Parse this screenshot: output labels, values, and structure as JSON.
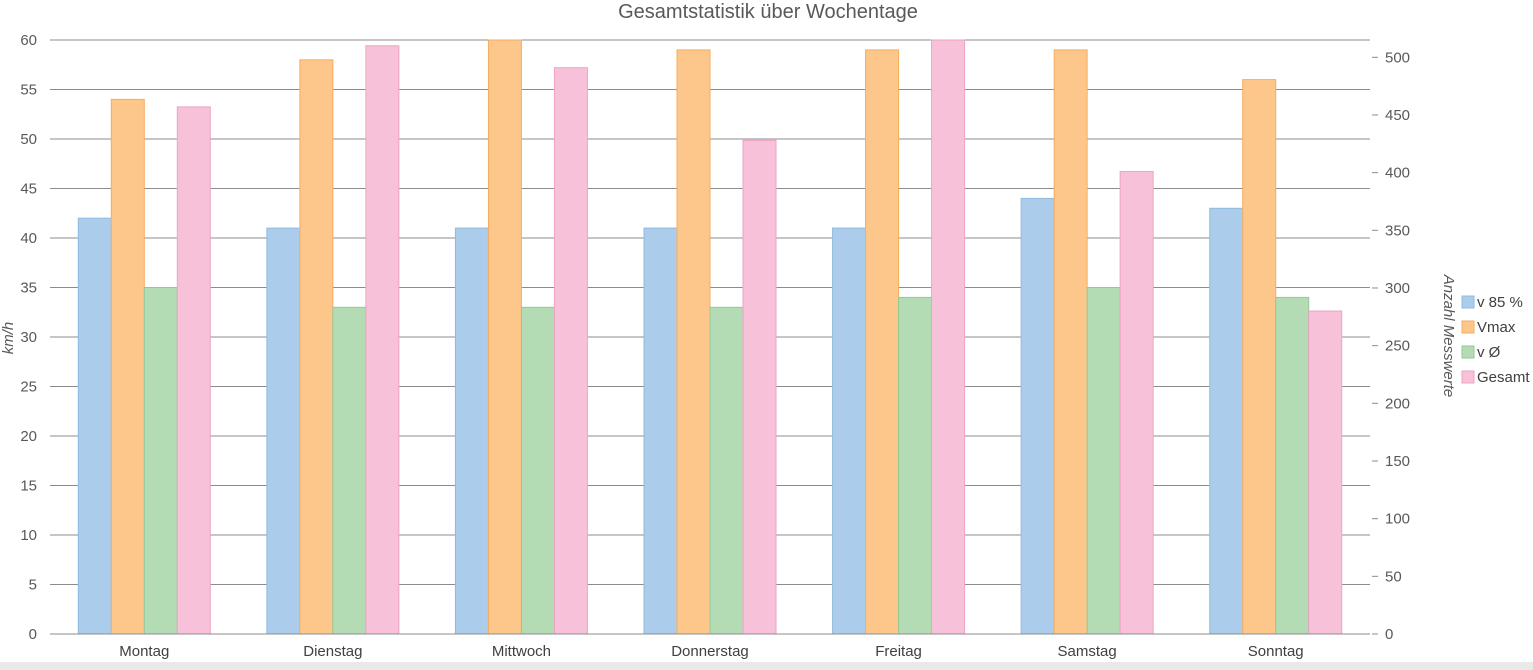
{
  "chart_data": {
    "type": "bar",
    "title": "Gesamtstatistik über Wochentage",
    "categories": [
      "Montag",
      "Dienstag",
      "Mittwoch",
      "Donnerstag",
      "Freitag",
      "Samstag",
      "Sonntag"
    ],
    "ylabel": "km/h",
    "y2label": "Anzahl Messwerte",
    "ylim": [
      0,
      60
    ],
    "yticks": [
      0,
      5,
      10,
      15,
      20,
      25,
      30,
      35,
      40,
      45,
      50,
      55,
      60
    ],
    "y2lim": [
      0,
      515
    ],
    "y2ticks": [
      0,
      50,
      100,
      150,
      200,
      250,
      300,
      350,
      400,
      450,
      500
    ],
    "grid": true,
    "legend_position": "right",
    "series": [
      {
        "name": "v 85 %",
        "axis": "left",
        "color": "#abcdeb",
        "border": "#8fbbe0",
        "values": [
          42,
          41,
          41,
          41,
          41,
          44,
          43
        ]
      },
      {
        "name": "Vmax",
        "axis": "left",
        "color": "#fdc68a",
        "border": "#f5ad60",
        "values": [
          54,
          58,
          60,
          59,
          59,
          59,
          56
        ]
      },
      {
        "name": "v Ø",
        "axis": "left",
        "color": "#b3dcb5",
        "border": "#93c996",
        "values": [
          35,
          33,
          33,
          33,
          34,
          35,
          34
        ]
      },
      {
        "name": "Gesamt",
        "axis": "right",
        "color": "#f7c2d9",
        "border": "#eda3c3",
        "values": [
          457,
          510,
          491,
          428,
          515,
          401,
          280
        ]
      }
    ]
  }
}
